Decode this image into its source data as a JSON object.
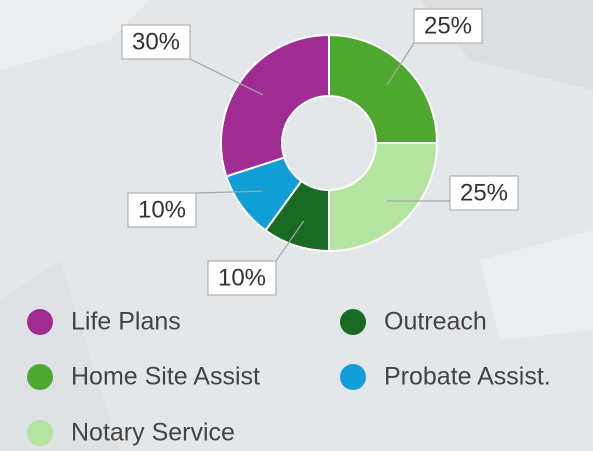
{
  "chart_data": {
    "type": "donut",
    "categories": [
      "Home Site Assist",
      "Notary Service",
      "Outreach",
      "Probate Assist.",
      "Life Plans"
    ],
    "values": [
      25,
      25,
      10,
      10,
      30
    ],
    "value_labels": [
      "25%",
      "25%",
      "10%",
      "10%",
      "30%"
    ],
    "colors": [
      "#4ea72e",
      "#b3e5a1",
      "#196b24",
      "#0f9ed5",
      "#a02b93"
    ]
  }
}
